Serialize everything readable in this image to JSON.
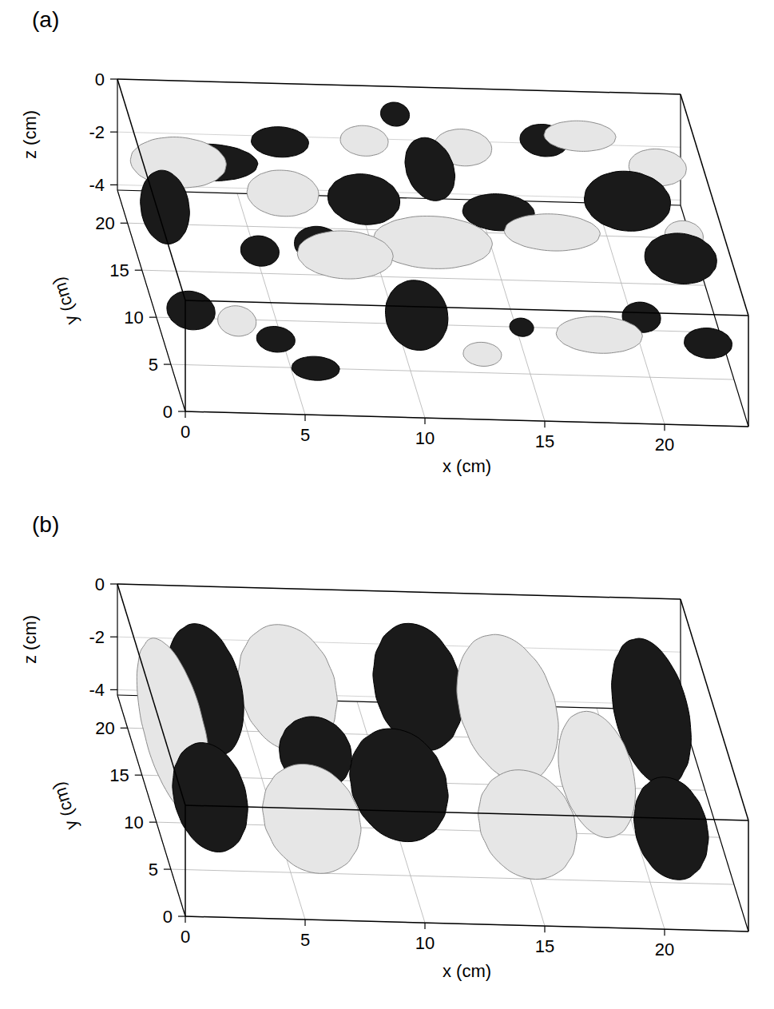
{
  "chart_data": [
    {
      "type": "isosurface",
      "panel": "(a)",
      "xlabel": "x (cm)",
      "ylabel": "y (cm)",
      "zlabel": "z (cm)",
      "xlim": [
        0,
        23.5
      ],
      "ylim": [
        0,
        23.5
      ],
      "zlim": [
        -4.2,
        0
      ],
      "xticks": [
        0,
        5,
        10,
        15,
        20
      ],
      "yticks": [
        0,
        5,
        10,
        15,
        20
      ],
      "zticks": [
        0,
        -2,
        -4
      ],
      "grid": true,
      "series": [
        {
          "color": "#1a1a1a",
          "values": [
            [
              1.2,
              17,
              -2.5,
              1.0,
              2.0,
              1.2
            ],
            [
              3.5,
              20.5,
              -2.0,
              2.0,
              1.0,
              0.6
            ],
            [
              6.3,
              19.5,
              -0.8,
              1.2,
              0.8,
              0.5
            ],
            [
              4.8,
              14,
              -3.0,
              0.8,
              0.8,
              0.5
            ],
            [
              1.2,
              8,
              -3.2,
              1.0,
              1.2,
              0.6
            ],
            [
              4.5,
              6,
              -3.5,
              0.8,
              0.8,
              0.4
            ],
            [
              5.8,
              3,
              -3.5,
              1.0,
              0.6,
              0.4
            ],
            [
              10.5,
              7,
              -2.8,
              1.3,
              1.6,
              1.2
            ],
            [
              9.5,
              17,
              -2.0,
              1.5,
              1.5,
              0.8
            ],
            [
              12.5,
              19,
              -1.5,
              1.0,
              2.5,
              0.8
            ],
            [
              15,
              16,
              -2.0,
              1.5,
              1.0,
              0.6
            ],
            [
              11.5,
              22.8,
              -0.8,
              0.6,
              0.6,
              0.4
            ],
            [
              17.5,
              21,
              -1.0,
              1.0,
              1.0,
              0.5
            ],
            [
              20.5,
              17,
              -1.8,
              1.8,
              1.5,
              1.0
            ],
            [
              22,
              11,
              -1.8,
              1.5,
              1.5,
              0.8
            ],
            [
              20,
              8,
              -3.0,
              0.8,
              0.8,
              0.5
            ],
            [
              22.3,
              4,
              -2.5,
              1.0,
              0.8,
              0.5
            ],
            [
              7,
              12,
              -2.0,
              1.0,
              1.0,
              0.6
            ],
            [
              15,
              8,
              -3.5,
              0.5,
              0.5,
              0.3
            ]
          ]
        },
        {
          "color": "#e6e6e6",
          "values": [
            [
              2,
              19,
              -1.5,
              2.0,
              1.5,
              0.8
            ],
            [
              6,
              16,
              -1.5,
              1.5,
              1.0,
              0.8
            ],
            [
              8,
              11,
              -2.0,
              2.0,
              1.2,
              0.8
            ],
            [
              12,
              14,
              -2.5,
              2.5,
              1.2,
              0.9
            ],
            [
              14,
              20,
              -1.0,
              1.2,
              1.0,
              0.6
            ],
            [
              17,
              14,
              -2.0,
              2.0,
              1.0,
              0.6
            ],
            [
              19,
              21,
              -0.8,
              1.5,
              0.8,
              0.5
            ],
            [
              22,
              19,
              -1.2,
              1.2,
              1.0,
              0.6
            ],
            [
              18,
              6,
              -3.0,
              1.8,
              1.0,
              0.6
            ],
            [
              13,
              5,
              -3.5,
              0.8,
              0.6,
              0.4
            ],
            [
              3,
              7,
              -3.2,
              0.8,
              0.8,
              0.5
            ],
            [
              10,
              21,
              -1.2,
              1.0,
              0.8,
              0.5
            ],
            [
              22.5,
              14,
              -2.0,
              0.8,
              0.8,
              0.5
            ]
          ]
        }
      ]
    },
    {
      "type": "isosurface",
      "panel": "(b)",
      "xlabel": "x (cm)",
      "ylabel": "y (cm)",
      "zlabel": "z (cm)",
      "xlim": [
        0,
        23.5
      ],
      "ylim": [
        0,
        23.5
      ],
      "zlim": [
        -4.2,
        0
      ],
      "xticks": [
        0,
        5,
        10,
        15,
        20
      ],
      "yticks": [
        0,
        5,
        10,
        15,
        20
      ],
      "zticks": [
        0,
        -2,
        -4
      ],
      "grid": true,
      "series": [
        {
          "color": "#1a1a1a",
          "values": [
            [
              3,
              18,
              -2,
              1.5,
              5,
              1.8
            ],
            [
              2,
              8,
              -2.5,
              1.5,
              4,
              1.5
            ],
            [
              12,
              19,
              -2,
              1.8,
              4.5,
              1.8
            ],
            [
              10,
              9,
              -2.2,
              2,
              4,
              1.6
            ],
            [
              7,
              13,
              -2.5,
              1.5,
              2,
              1.2
            ],
            [
              21.5,
              17,
              -2,
              1.5,
              6,
              1.8
            ],
            [
              21,
              6,
              -2.5,
              1.5,
              3.5,
              1.5
            ]
          ]
        },
        {
          "color": "#e6e6e6",
          "values": [
            [
              1.2,
              14,
              -2,
              1.2,
              8,
              1.8
            ],
            [
              6.5,
              18.5,
              -2,
              2,
              4.5,
              1.8
            ],
            [
              6,
              6,
              -2.5,
              2,
              4,
              1.5
            ],
            [
              15.5,
              17,
              -2,
              2,
              6,
              1.8
            ],
            [
              15,
              6,
              -2.5,
              2,
              4,
              1.5
            ],
            [
              18.5,
              11,
              -2.3,
              1.5,
              5,
              1.6
            ]
          ]
        }
      ]
    }
  ]
}
